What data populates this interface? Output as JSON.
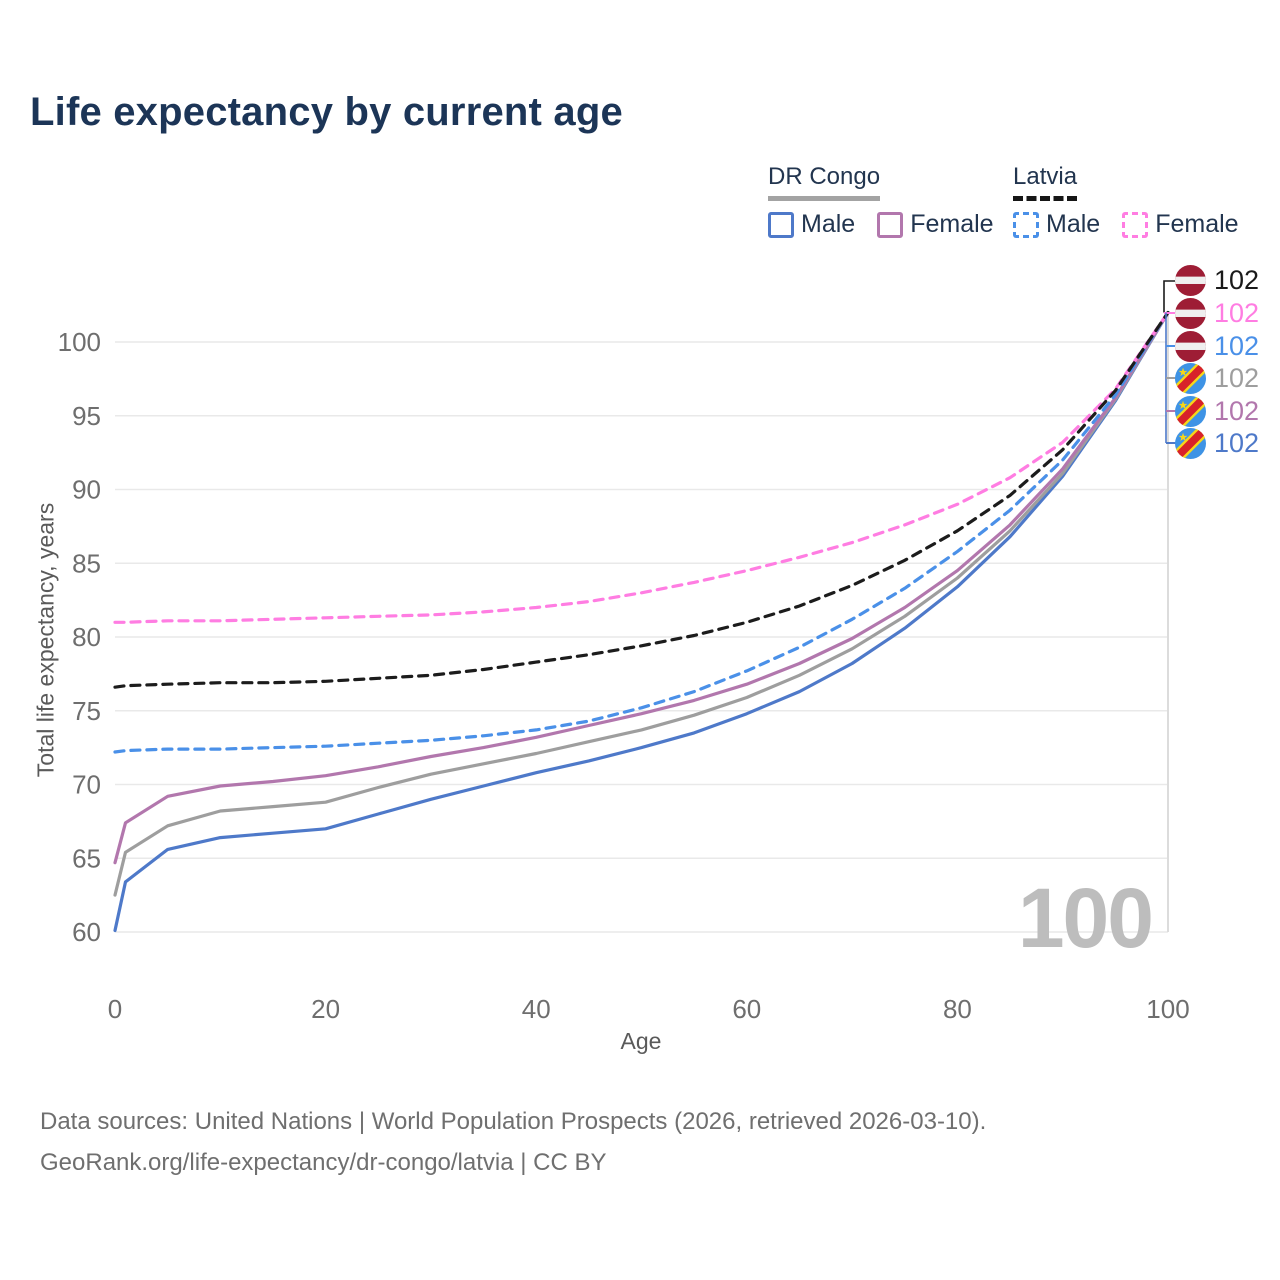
{
  "title": "Life expectancy by current age",
  "legend": {
    "groups": [
      {
        "label": "DR Congo",
        "underline_style": "solid",
        "underline_color": "#a3a3a3",
        "items": [
          {
            "label": "Male",
            "color": "#4e79c9",
            "dash": false
          },
          {
            "label": "Female",
            "color": "#b277ad",
            "dash": false
          }
        ]
      },
      {
        "label": "Latvia",
        "underline_style": "dashed",
        "underline_color": "#161616",
        "items": [
          {
            "label": "Male",
            "color": "#4a90e8",
            "dash": true
          },
          {
            "label": "Female",
            "color": "#ff7de2",
            "dash": true
          }
        ]
      }
    ]
  },
  "watermark_age": "100",
  "end_labels": [
    {
      "country": "Latvia",
      "series": "Total",
      "value": "102",
      "color": "#1a1a1a",
      "flag": "latvia"
    },
    {
      "country": "Latvia",
      "series": "Female",
      "value": "102",
      "color": "#ff7de2",
      "flag": "latvia"
    },
    {
      "country": "Latvia",
      "series": "Male",
      "value": "102",
      "color": "#4a90e8",
      "flag": "latvia"
    },
    {
      "country": "DR Congo",
      "series": "Total",
      "value": "102",
      "color": "#9e9e9e",
      "flag": "drc"
    },
    {
      "country": "DR Congo",
      "series": "Female",
      "value": "102",
      "color": "#b277ad",
      "flag": "drc"
    },
    {
      "country": "DR Congo",
      "series": "Male",
      "value": "102",
      "color": "#4e79c9",
      "flag": "drc"
    }
  ],
  "footer": {
    "line1": "Data sources: United Nations | World Population Prospects (2026, retrieved 2026-03-10).",
    "line2": "GeoRank.org/life-expectancy/dr-congo/latvia | CC BY"
  },
  "chart_data": {
    "type": "line",
    "xlabel": "Age",
    "ylabel": "Total life expectancy, years",
    "x_ticks": [
      0,
      20,
      40,
      60,
      80,
      100
    ],
    "y_ticks": [
      60,
      65,
      70,
      75,
      80,
      85,
      90,
      95,
      100
    ],
    "xlim": [
      0,
      100
    ],
    "ylim": [
      58.5,
      103
    ],
    "grid": "horizontal-only",
    "age_indicator": 100,
    "x": [
      0,
      1,
      5,
      10,
      15,
      20,
      25,
      30,
      35,
      40,
      45,
      50,
      55,
      60,
      65,
      70,
      75,
      80,
      85,
      90,
      95,
      100
    ],
    "series": [
      {
        "name": "DR Congo Male",
        "color": "#4e79c9",
        "dash": false,
        "values": [
          60.1,
          63.4,
          65.6,
          66.4,
          66.7,
          67.0,
          68.0,
          69.0,
          69.9,
          70.8,
          71.6,
          72.5,
          73.5,
          74.8,
          76.3,
          78.2,
          80.6,
          83.4,
          86.8,
          90.9,
          96.0,
          102
        ]
      },
      {
        "name": "DR Congo Total",
        "color": "#9e9e9e",
        "dash": false,
        "values": [
          62.5,
          65.4,
          67.2,
          68.2,
          68.5,
          68.8,
          69.8,
          70.7,
          71.4,
          72.1,
          72.9,
          73.7,
          74.7,
          75.9,
          77.4,
          79.2,
          81.4,
          84.0,
          87.2,
          91.1,
          96.1,
          102
        ]
      },
      {
        "name": "DR Congo Female",
        "color": "#b277ad",
        "dash": false,
        "values": [
          64.7,
          67.4,
          69.2,
          69.9,
          70.2,
          70.6,
          71.2,
          71.9,
          72.5,
          73.2,
          74.0,
          74.8,
          75.7,
          76.8,
          78.2,
          79.9,
          82.0,
          84.5,
          87.6,
          91.4,
          96.2,
          102
        ]
      },
      {
        "name": "Latvia Male",
        "color": "#4a90e8",
        "dash": true,
        "values": [
          72.2,
          72.3,
          72.4,
          72.4,
          72.5,
          72.6,
          72.8,
          73.0,
          73.3,
          73.7,
          74.3,
          75.2,
          76.3,
          77.7,
          79.3,
          81.2,
          83.3,
          85.8,
          88.6,
          92.0,
          96.4,
          102
        ]
      },
      {
        "name": "Latvia Female",
        "color": "#ff7de2",
        "dash": true,
        "values": [
          81.0,
          81.0,
          81.1,
          81.1,
          81.2,
          81.3,
          81.4,
          81.5,
          81.7,
          82.0,
          82.4,
          83.0,
          83.7,
          84.5,
          85.4,
          86.4,
          87.6,
          89.0,
          90.8,
          93.2,
          96.8,
          102
        ]
      },
      {
        "name": "Latvia Total",
        "color": "#1c1c1c",
        "dash": true,
        "values": [
          76.6,
          76.7,
          76.8,
          76.9,
          76.9,
          77.0,
          77.2,
          77.4,
          77.8,
          78.3,
          78.8,
          79.4,
          80.1,
          81.0,
          82.1,
          83.5,
          85.2,
          87.2,
          89.6,
          92.7,
          96.7,
          102
        ]
      }
    ]
  }
}
